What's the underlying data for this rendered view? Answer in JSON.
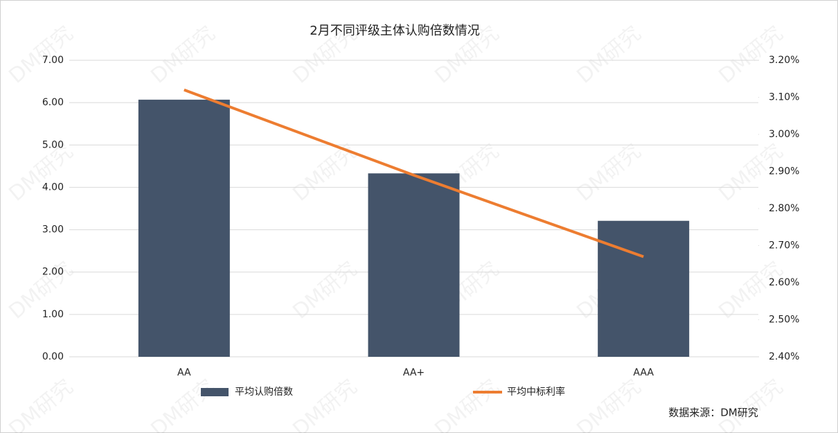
{
  "chart_data": {
    "type": "bar",
    "title": "2月不同评级主体认购倍数情况",
    "categories": [
      "AA",
      "AA+",
      "AAA"
    ],
    "series": [
      {
        "name": "平均认购倍数",
        "type": "bar",
        "color": "#44546a",
        "values": [
          6.07,
          4.33,
          3.21
        ]
      },
      {
        "name": "平均中标利率",
        "type": "line",
        "axis": "y2",
        "color": "#ed7d31",
        "values": [
          3.12,
          2.89,
          2.67
        ]
      }
    ],
    "ylim": [
      0,
      7
    ],
    "yticks": [
      {
        "value": 0,
        "label": "0.00"
      },
      {
        "value": 1,
        "label": "1.00"
      },
      {
        "value": 2,
        "label": "2.00"
      },
      {
        "value": 3,
        "label": "3.00"
      },
      {
        "value": 4,
        "label": "4.00"
      },
      {
        "value": 5,
        "label": "5.00"
      },
      {
        "value": 6,
        "label": "6.00"
      },
      {
        "value": 7,
        "label": "7.00"
      }
    ],
    "y2lim": [
      2.4,
      3.2
    ],
    "y2ticks": [
      {
        "value": 2.4,
        "label": "2.40%"
      },
      {
        "value": 2.5,
        "label": "2.50%"
      },
      {
        "value": 2.6,
        "label": "2.60%"
      },
      {
        "value": 2.7,
        "label": "2.70%"
      },
      {
        "value": 2.8,
        "label": "2.80%"
      },
      {
        "value": 2.9,
        "label": "2.90%"
      },
      {
        "value": 3.0,
        "label": "3.00%"
      },
      {
        "value": 3.1,
        "label": "3.10%"
      },
      {
        "value": 3.2,
        "label": "3.20%"
      }
    ],
    "grid": true,
    "legend": "bottom",
    "source": "数据来源：DM研究",
    "watermark": "DM研究"
  }
}
